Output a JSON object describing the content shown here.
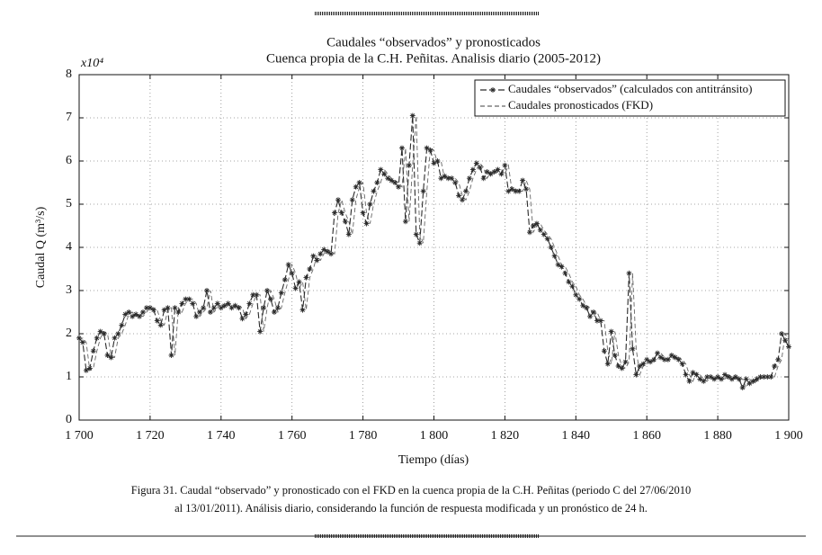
{
  "chart_data": {
    "type": "line",
    "title": "Caudales “observados” y pronosticados",
    "subtitle": "Cuenca propia de la C.H. Peñitas. Analisis diario (2005-2012)",
    "x_label": "Tiempo (días)",
    "y_label": "Caudal Q (m³/s)",
    "y_multiplier": "x10⁴",
    "caption": [
      "Figura 31. Caudal “observado” y pronosticado con el FKD en la cuenca propia de la C.H. Peñitas (periodo C del 27/06/2010",
      "al 13/01/2011). Análisis diario, considerando la función de respuesta modificada y un pronóstico de 24 h."
    ],
    "xlim": [
      1700,
      1900
    ],
    "xticks": [
      {
        "value": 1700,
        "label": "1 700"
      },
      {
        "value": 1720,
        "label": "1 720"
      },
      {
        "value": 1740,
        "label": "1 740"
      },
      {
        "value": 1760,
        "label": "1 760"
      },
      {
        "value": 1780,
        "label": "1 780"
      },
      {
        "value": 1800,
        "label": "1 800"
      },
      {
        "value": 1820,
        "label": "1 820"
      },
      {
        "value": 1840,
        "label": "1 840"
      },
      {
        "value": 1860,
        "label": "1 860"
      },
      {
        "value": 1880,
        "label": "1 880"
      },
      {
        "value": 1900,
        "label": "1 900"
      }
    ],
    "ylim": [
      0,
      8
    ],
    "yticks": [
      0,
      1,
      2,
      3,
      4,
      5,
      6,
      7,
      8
    ],
    "grid": true,
    "legend": "northeast",
    "x": [
      1700,
      1701,
      1702,
      1703,
      1704,
      1705,
      1706,
      1707,
      1708,
      1709,
      1710,
      1711,
      1712,
      1713,
      1714,
      1715,
      1716,
      1717,
      1718,
      1719,
      1720,
      1721,
      1722,
      1723,
      1724,
      1725,
      1726,
      1727,
      1728,
      1729,
      1730,
      1731,
      1732,
      1733,
      1734,
      1735,
      1736,
      1737,
      1738,
      1739,
      1740,
      1741,
      1742,
      1743,
      1744,
      1745,
      1746,
      1747,
      1748,
      1749,
      1750,
      1751,
      1752,
      1753,
      1754,
      1755,
      1756,
      1757,
      1758,
      1759,
      1760,
      1761,
      1762,
      1763,
      1764,
      1765,
      1766,
      1767,
      1768,
      1769,
      1770,
      1771,
      1772,
      1773,
      1774,
      1775,
      1776,
      1777,
      1778,
      1779,
      1780,
      1781,
      1782,
      1783,
      1784,
      1785,
      1786,
      1787,
      1788,
      1789,
      1790,
      1791,
      1792,
      1793,
      1794,
      1795,
      1796,
      1797,
      1798,
      1799,
      1800,
      1801,
      1802,
      1803,
      1804,
      1805,
      1806,
      1807,
      1808,
      1809,
      1810,
      1811,
      1812,
      1813,
      1814,
      1815,
      1816,
      1817,
      1818,
      1819,
      1820,
      1821,
      1822,
      1823,
      1824,
      1825,
      1826,
      1827,
      1828,
      1829,
      1830,
      1831,
      1832,
      1833,
      1834,
      1835,
      1836,
      1837,
      1838,
      1839,
      1840,
      1841,
      1842,
      1843,
      1844,
      1845,
      1846,
      1847,
      1848,
      1849,
      1850,
      1851,
      1852,
      1853,
      1854,
      1855,
      1856,
      1857,
      1858,
      1859,
      1860,
      1861,
      1862,
      1863,
      1864,
      1865,
      1866,
      1867,
      1868,
      1869,
      1870,
      1871,
      1872,
      1873,
      1874,
      1875,
      1876,
      1877,
      1878,
      1879,
      1880,
      1881,
      1882,
      1883,
      1884,
      1885,
      1886,
      1887,
      1888,
      1889,
      1890,
      1891,
      1892,
      1893,
      1894,
      1895,
      1896,
      1897,
      1898,
      1899,
      1900
    ],
    "series": [
      {
        "name": "Caudales “observados” (calculados con antitránsito)",
        "color": "#2a2a2a",
        "dash": "7 3",
        "marker": true,
        "values": [
          1.9,
          1.8,
          1.15,
          1.2,
          1.6,
          1.9,
          2.05,
          2.0,
          1.5,
          1.45,
          1.9,
          2.0,
          2.2,
          2.45,
          2.5,
          2.4,
          2.45,
          2.4,
          2.5,
          2.6,
          2.6,
          2.55,
          2.3,
          2.2,
          2.55,
          2.6,
          1.5,
          2.6,
          2.5,
          2.7,
          2.8,
          2.8,
          2.7,
          2.4,
          2.5,
          2.6,
          3.0,
          2.5,
          2.6,
          2.7,
          2.6,
          2.65,
          2.7,
          2.6,
          2.65,
          2.6,
          2.35,
          2.45,
          2.7,
          2.9,
          2.9,
          2.05,
          2.6,
          3.0,
          2.8,
          2.5,
          2.6,
          2.95,
          3.25,
          3.6,
          3.4,
          3.05,
          3.2,
          2.55,
          3.3,
          3.5,
          3.8,
          3.7,
          3.85,
          3.95,
          3.9,
          3.85,
          4.8,
          5.1,
          4.8,
          4.6,
          4.3,
          5.1,
          5.4,
          5.5,
          4.8,
          4.55,
          5.0,
          5.3,
          5.5,
          5.8,
          5.7,
          5.6,
          5.55,
          5.5,
          5.4,
          6.3,
          4.6,
          5.9,
          7.05,
          4.3,
          4.1,
          5.3,
          6.3,
          6.25,
          5.95,
          6.0,
          5.6,
          5.65,
          5.6,
          5.6,
          5.5,
          5.2,
          5.1,
          5.3,
          5.6,
          5.8,
          5.95,
          5.85,
          5.6,
          5.75,
          5.7,
          5.75,
          5.8,
          5.7,
          5.9,
          5.3,
          5.35,
          5.3,
          5.3,
          5.55,
          5.35,
          4.35,
          4.5,
          4.55,
          4.4,
          4.3,
          4.2,
          4.0,
          3.8,
          3.6,
          3.55,
          3.4,
          3.2,
          3.1,
          2.9,
          2.8,
          2.65,
          2.6,
          2.4,
          2.5,
          2.3,
          2.3,
          1.6,
          1.3,
          2.05,
          1.5,
          1.25,
          1.2,
          1.35,
          3.4,
          1.65,
          1.05,
          1.25,
          1.3,
          1.4,
          1.35,
          1.4,
          1.55,
          1.45,
          1.4,
          1.4,
          1.5,
          1.45,
          1.4,
          1.3,
          1.05,
          0.9,
          1.1,
          1.05,
          0.95,
          0.9,
          1.0,
          1.0,
          0.95,
          1.0,
          0.95,
          1.05,
          1.0,
          0.95,
          1.0,
          0.95,
          0.75,
          0.95,
          0.85,
          0.9,
          0.95,
          1.0,
          1.0,
          1.0,
          1.0,
          1.25,
          1.4,
          2.0,
          1.85,
          1.7
        ]
      },
      {
        "name": "Caudales pronosticados (FKD)",
        "color": "#666666",
        "dash": "5 3",
        "marker": false,
        "values": [
          1.85,
          1.9,
          1.8,
          1.15,
          1.2,
          1.6,
          1.9,
          2.05,
          2.0,
          1.5,
          1.45,
          1.9,
          2.0,
          2.2,
          2.45,
          2.5,
          2.4,
          2.45,
          2.4,
          2.5,
          2.6,
          2.6,
          2.55,
          2.3,
          2.2,
          2.55,
          2.6,
          1.5,
          2.6,
          2.5,
          2.7,
          2.8,
          2.8,
          2.7,
          2.4,
          2.5,
          2.6,
          3.0,
          2.5,
          2.6,
          2.7,
          2.6,
          2.65,
          2.7,
          2.6,
          2.65,
          2.6,
          2.35,
          2.45,
          2.7,
          2.9,
          2.9,
          2.05,
          2.6,
          3.0,
          2.8,
          2.5,
          2.6,
          2.95,
          3.25,
          3.6,
          3.4,
          3.05,
          3.2,
          2.55,
          3.3,
          3.5,
          3.8,
          3.7,
          3.85,
          3.95,
          3.9,
          3.85,
          4.8,
          5.1,
          4.8,
          4.6,
          4.3,
          5.1,
          5.4,
          5.5,
          4.8,
          4.55,
          5.0,
          5.3,
          5.5,
          5.8,
          5.7,
          5.6,
          5.55,
          5.5,
          5.4,
          6.3,
          4.6,
          5.9,
          7.05,
          4.3,
          4.1,
          5.3,
          6.3,
          6.25,
          5.95,
          6.0,
          5.6,
          5.65,
          5.6,
          5.6,
          5.5,
          5.2,
          5.1,
          5.3,
          5.6,
          5.8,
          5.95,
          5.85,
          5.6,
          5.75,
          5.7,
          5.75,
          5.8,
          5.7,
          5.9,
          5.3,
          5.35,
          5.3,
          5.3,
          5.55,
          5.35,
          4.35,
          4.5,
          4.55,
          4.4,
          4.3,
          4.2,
          4.0,
          3.8,
          3.6,
          3.55,
          3.4,
          3.2,
          3.1,
          2.9,
          2.8,
          2.65,
          2.6,
          2.4,
          2.5,
          2.3,
          2.3,
          1.6,
          1.3,
          2.05,
          1.5,
          1.25,
          1.2,
          1.35,
          3.4,
          1.65,
          1.05,
          1.25,
          1.3,
          1.4,
          1.35,
          1.4,
          1.55,
          1.45,
          1.4,
          1.4,
          1.5,
          1.45,
          1.4,
          1.3,
          1.05,
          0.9,
          1.1,
          1.05,
          0.95,
          0.9,
          1.0,
          1.0,
          0.95,
          1.0,
          0.95,
          1.05,
          1.0,
          0.95,
          1.0,
          0.95,
          0.75,
          0.95,
          0.85,
          0.9,
          0.95,
          1.0,
          1.0,
          1.0,
          1.0,
          1.25,
          1.4,
          2.0,
          1.85
        ]
      }
    ]
  }
}
